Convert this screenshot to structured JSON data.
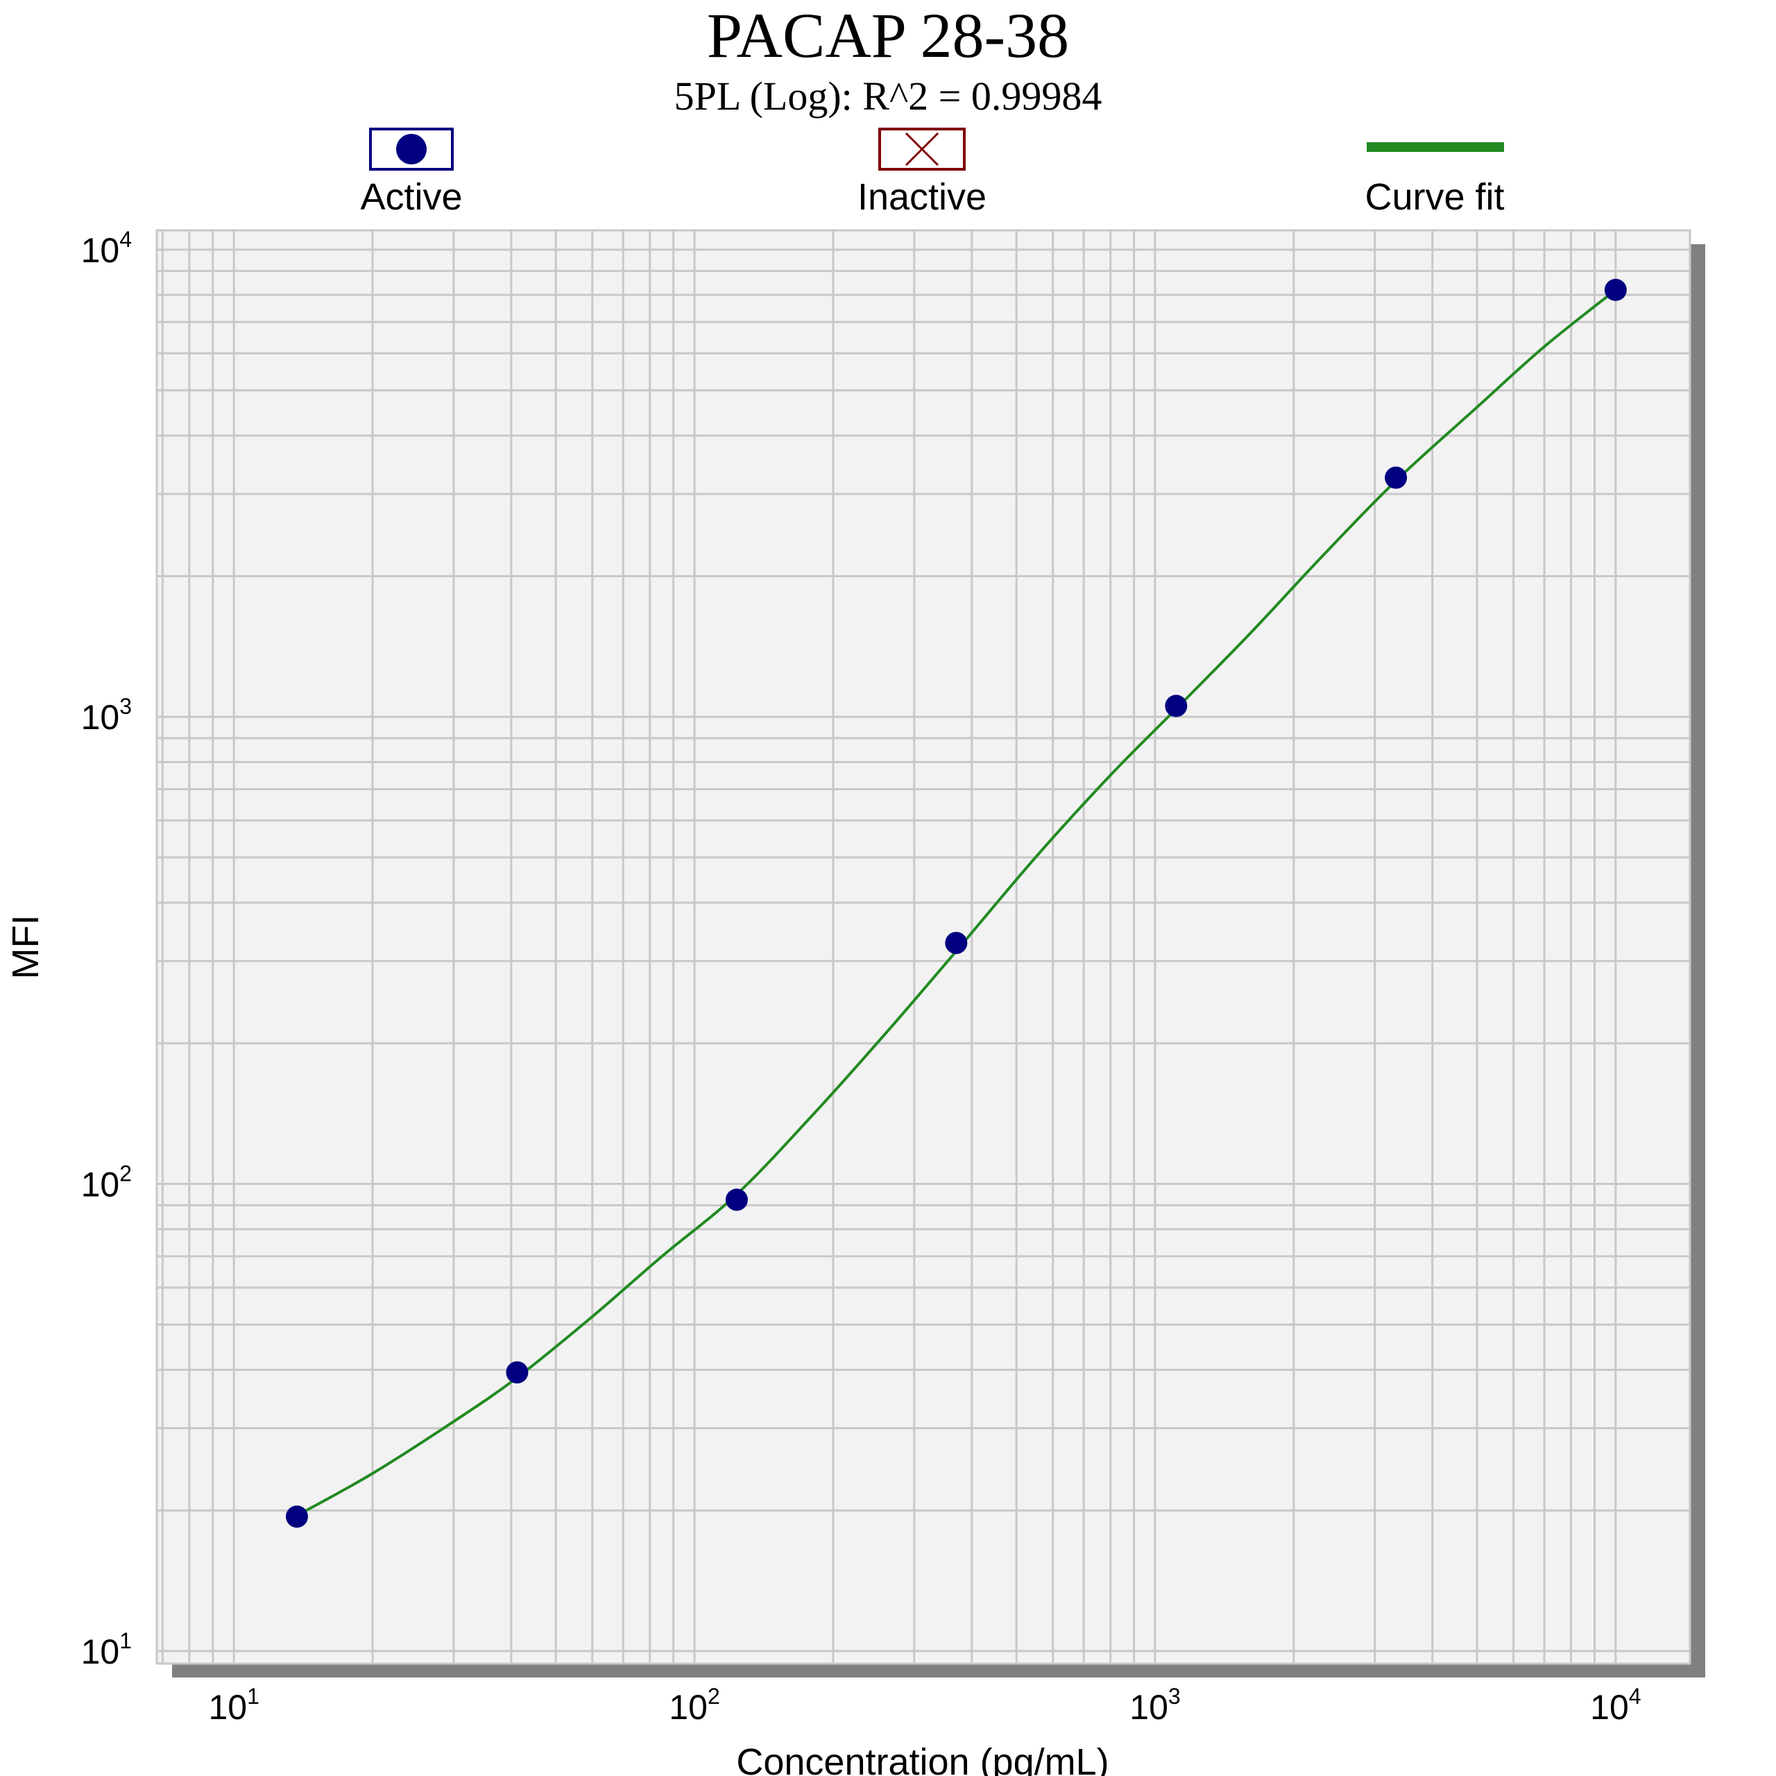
{
  "chart_data": {
    "type": "scatter",
    "title": "PACAP 28-38",
    "subtitle": "5PL (Log): R^2 = 0.99984",
    "xlabel": "Concentration (pg/mL)",
    "ylabel": "MFI",
    "x_scale": "log",
    "y_scale": "log",
    "xlim": [
      6.8,
      14500
    ],
    "ylim": [
      9.4,
      11000
    ],
    "x_ticks": [
      {
        "value": 10,
        "base": "10",
        "exp": "1"
      },
      {
        "value": 100,
        "base": "10",
        "exp": "2"
      },
      {
        "value": 1000,
        "base": "10",
        "exp": "3"
      },
      {
        "value": 10000,
        "base": "10",
        "exp": "4"
      }
    ],
    "y_ticks": [
      {
        "value": 10,
        "base": "10",
        "exp": "1"
      },
      {
        "value": 100,
        "base": "10",
        "exp": "2"
      },
      {
        "value": 1000,
        "base": "10",
        "exp": "3"
      },
      {
        "value": 10000,
        "base": "10",
        "exp": "4"
      }
    ],
    "grid": true,
    "legend_position": "top",
    "legend": [
      {
        "label": "Active",
        "kind": "active"
      },
      {
        "label": "Inactive",
        "kind": "inactive"
      },
      {
        "label": "Curve fit",
        "kind": "curve"
      }
    ],
    "series": [
      {
        "name": "Active",
        "values": [
          {
            "x": 13.7,
            "y": 19.4
          },
          {
            "x": 41.2,
            "y": 39.5
          },
          {
            "x": 123.5,
            "y": 92.5
          },
          {
            "x": 370,
            "y": 328
          },
          {
            "x": 1111,
            "y": 1055
          },
          {
            "x": 3333,
            "y": 3250
          },
          {
            "x": 10000,
            "y": 8200
          }
        ]
      },
      {
        "name": "Curve fit",
        "values": [
          {
            "x": 13.7,
            "y": 19.5
          },
          {
            "x": 20,
            "y": 24.0
          },
          {
            "x": 30,
            "y": 31.0
          },
          {
            "x": 41.2,
            "y": 38.5
          },
          {
            "x": 60,
            "y": 52.0
          },
          {
            "x": 85,
            "y": 70.0
          },
          {
            "x": 123.5,
            "y": 95.0
          },
          {
            "x": 180,
            "y": 140.0
          },
          {
            "x": 260,
            "y": 210.0
          },
          {
            "x": 370,
            "y": 315.0
          },
          {
            "x": 550,
            "y": 500.0
          },
          {
            "x": 800,
            "y": 750.0
          },
          {
            "x": 1111,
            "y": 1040.0
          },
          {
            "x": 1600,
            "y": 1500.0
          },
          {
            "x": 2300,
            "y": 2200.0
          },
          {
            "x": 3333,
            "y": 3200.0
          },
          {
            "x": 5000,
            "y": 4600.0
          },
          {
            "x": 7000,
            "y": 6200.0
          },
          {
            "x": 10000,
            "y": 8200.0
          }
        ]
      }
    ],
    "colors": {
      "marker": "#000080",
      "curve": "#228B22",
      "inactive": "#800000",
      "grid": "#c8c8c8",
      "plot_bg": "#f2f2f2",
      "shadow": "#808080"
    }
  }
}
